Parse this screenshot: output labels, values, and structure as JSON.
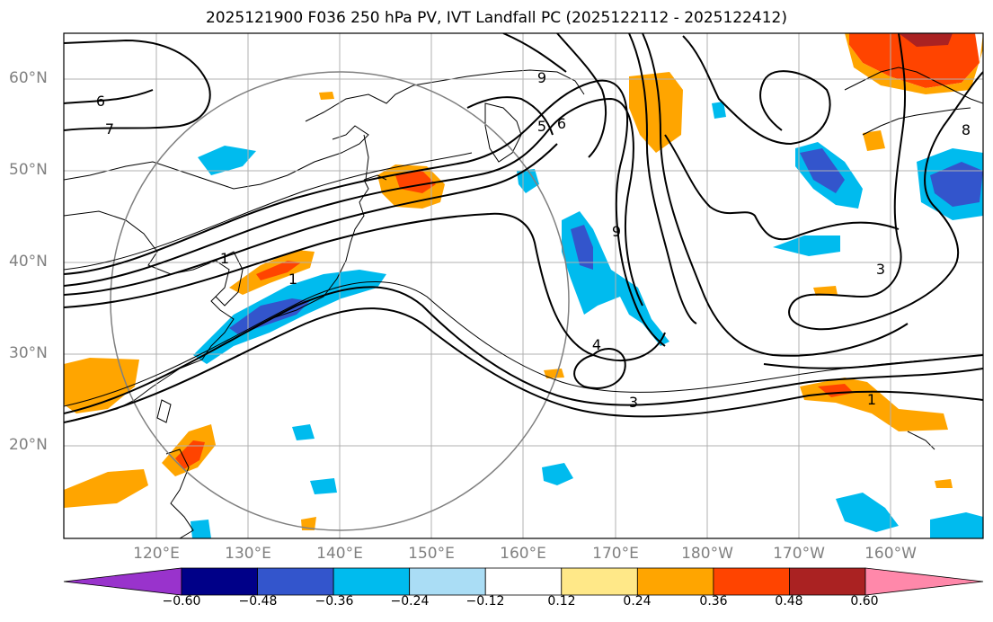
{
  "title": "2025121900 F036 250 hPa PV, IVT Landfall PC (2025122112 - 2025122412)",
  "map": {
    "lat_labels": [
      "60°N",
      "50°N",
      "40°N",
      "30°N",
      "20°N"
    ],
    "lon_labels": [
      "120°E",
      "130°E",
      "140°E",
      "150°E",
      "160°E",
      "170°E",
      "180°W",
      "170°W",
      "160°W"
    ],
    "contour_labels": [
      "6",
      "7",
      "1",
      "1",
      "4",
      "3",
      "5",
      "6",
      "9",
      "3",
      "8",
      "1",
      "9"
    ]
  },
  "colorbar": {
    "levels": [
      "−0.60",
      "−0.48",
      "−0.36",
      "−0.24",
      "−0.12",
      "0.12",
      "0.24",
      "0.36",
      "0.48",
      "0.60"
    ],
    "colors": [
      "#9933cc",
      "#000088",
      "#3355cc",
      "#00bbee",
      "#aaddf5",
      "#ffffff",
      "#ffe888",
      "#ffa500",
      "#ff4400",
      "#aa2222",
      "#ff88aa"
    ]
  }
}
